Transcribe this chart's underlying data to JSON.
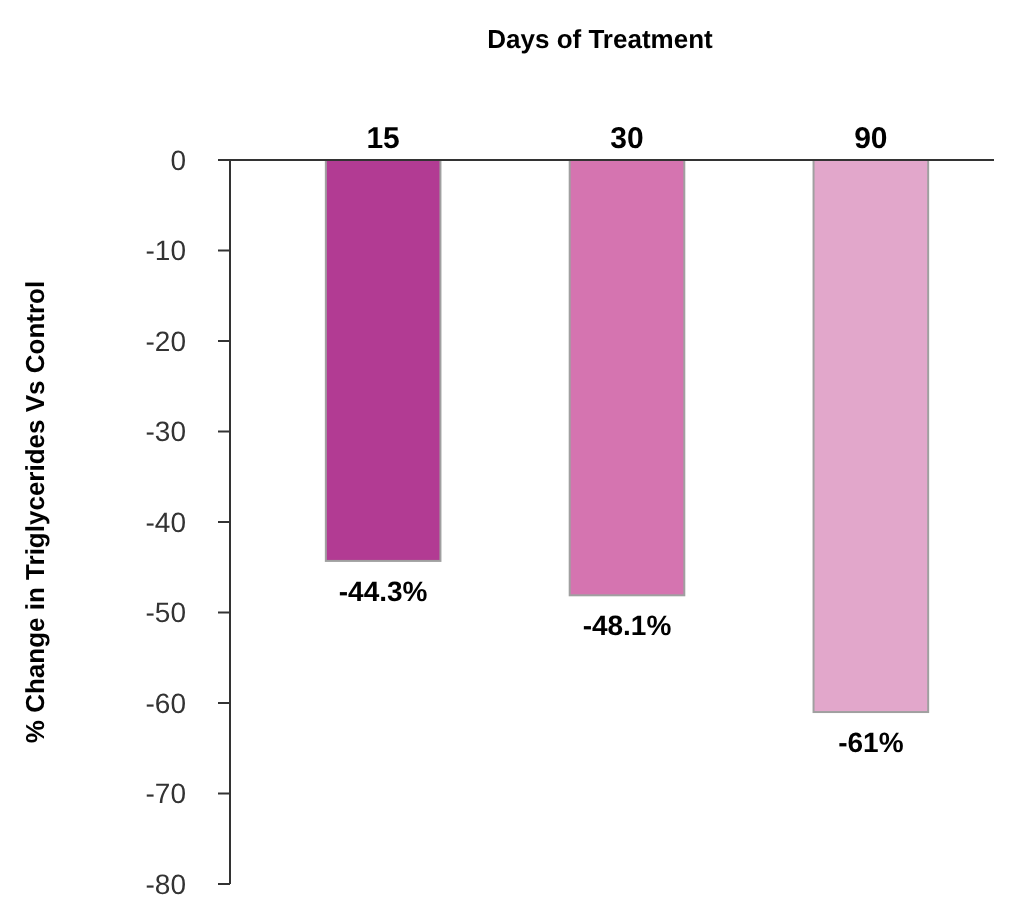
{
  "chart_data": {
    "type": "bar",
    "xlabel": "Days of Treatment",
    "ylabel": "% Change in Triglycerides Vs Control",
    "categories": [
      "15",
      "30",
      "90"
    ],
    "values": [
      -44.3,
      -48.1,
      -61
    ],
    "colors": [
      "#b23b93",
      "#d574b0",
      "#e2a7cb"
    ],
    "value_labels": [
      "-44.3%",
      "-48.1%",
      "-61%"
    ],
    "ylim": [
      -80,
      0
    ],
    "yticks": [
      0,
      -10,
      -20,
      -30,
      -40,
      -50,
      -60,
      -70,
      -80
    ]
  }
}
